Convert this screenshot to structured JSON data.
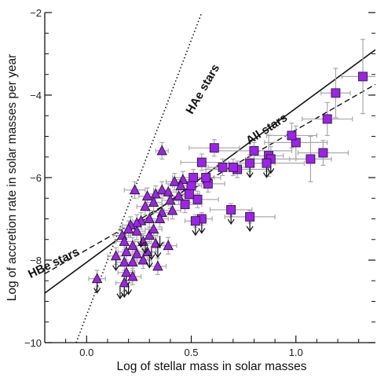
{
  "chart_data": {
    "type": "scatter",
    "title": "",
    "xlabel": "Log of stellar mass in solar masses",
    "ylabel": "Log of accretion rate in solar masses per year",
    "xlim": [
      -0.2,
      1.38
    ],
    "ylim": [
      -10,
      -2
    ],
    "x_ticks": [
      {
        "value": 0.0,
        "label": "0.0"
      },
      {
        "value": 0.5,
        "label": "0.5"
      },
      {
        "value": 1.0,
        "label": "1.0"
      }
    ],
    "x_minor_ticks": [
      -0.1,
      0.1,
      0.2,
      0.3,
      0.4,
      0.6,
      0.7,
      0.8,
      0.9,
      1.1,
      1.2,
      1.3
    ],
    "y_ticks": [
      {
        "value": -2,
        "label": "−2"
      },
      {
        "value": -4,
        "label": "−4"
      },
      {
        "value": -6,
        "label": "−6"
      },
      {
        "value": -8,
        "label": "−8"
      },
      {
        "value": -10,
        "label": "−10"
      }
    ],
    "y_minor_ticks": [
      -2.5,
      -3,
      -3.5,
      -4.5,
      -5,
      -5.5,
      -6.5,
      -7,
      -7.5,
      -8.5,
      -9,
      -9.5
    ],
    "grid": false,
    "annotations": [
      {
        "text": "HAe stars",
        "x": 0.57,
        "y": -3.9,
        "angle": -60
      },
      {
        "text": "All stars",
        "x": 0.87,
        "y": -4.9,
        "angle": -33
      },
      {
        "text": "HBe stars",
        "x": -0.15,
        "y": -8.15,
        "angle": -26
      }
    ],
    "fit_lines": [
      {
        "label": "All stars",
        "style": "solid",
        "x": [
          -0.2,
          1.38
        ],
        "y": [
          -8.8,
          -2.9
        ]
      },
      {
        "label": "HBe stars",
        "style": "dashed",
        "x": [
          -0.2,
          1.38
        ],
        "y": [
          -8.33,
          -3.74
        ]
      },
      {
        "label": "HAe stars",
        "style": "dotted",
        "x": [
          -0.05,
          0.55
        ],
        "y": [
          -10.0,
          -2.0
        ]
      }
    ],
    "series": [
      {
        "marker": "square",
        "color": "#a020f0",
        "points": [
          {
            "x": 1.32,
            "y": -3.55,
            "xerr": 0.1,
            "yerr": 0.9
          },
          {
            "x": 1.19,
            "y": -3.95,
            "xerr": 0.07,
            "yerr": 0.6
          },
          {
            "x": 1.15,
            "y": -4.58,
            "xerr": 0.12,
            "yerr": 0.4
          },
          {
            "x": 1.13,
            "y": -5.4,
            "xerr": 0.12,
            "yerr": 0.3
          },
          {
            "x": 1.07,
            "y": -5.55,
            "xerr": 0.1,
            "yerr": 0.55
          },
          {
            "x": 1.0,
            "y": -5.15,
            "xerr": 0.15,
            "yerr": 0.4
          },
          {
            "x": 0.98,
            "y": -4.98,
            "xerr": 0.12,
            "yerr": 0.3
          },
          {
            "x": 0.87,
            "y": -5.47,
            "xerr": 0.07,
            "yerr": 0.5
          },
          {
            "x": 0.88,
            "y": -5.55,
            "xerr": 0.12,
            "yerr": 0.3,
            "upper_limit": true
          },
          {
            "x": 0.86,
            "y": -5.65,
            "xerr": 0.18,
            "yerr": 0.2,
            "upper_limit": true
          },
          {
            "x": 0.8,
            "y": -5.35,
            "xerr": 0.18,
            "yerr": 0.2
          },
          {
            "x": 0.78,
            "y": -5.65,
            "xerr": 0.12,
            "yerr": 0.2,
            "upper_limit": true
          },
          {
            "x": 0.72,
            "y": -5.8,
            "xerr": 0.15,
            "yerr": 0.2
          },
          {
            "x": 0.7,
            "y": -5.75,
            "xerr": 0.08,
            "yerr": 0.2
          },
          {
            "x": 0.65,
            "y": -5.75,
            "xerr": 0.07,
            "yerr": 0.2
          },
          {
            "x": 0.61,
            "y": -5.28,
            "xerr": 0.12,
            "yerr": 0.2
          },
          {
            "x": 0.58,
            "y": -6.15,
            "xerr": 0.08,
            "yerr": 0.2
          },
          {
            "x": 0.57,
            "y": -6.0,
            "xerr": 0.07,
            "yerr": 0.2
          },
          {
            "x": 0.55,
            "y": -5.63,
            "xerr": 0.1,
            "yerr": 0.2
          },
          {
            "x": 0.53,
            "y": -6.53,
            "xerr": 0.1,
            "yerr": 0.2
          },
          {
            "x": 0.51,
            "y": -6.0,
            "xerr": 0.1,
            "yerr": 0.2
          },
          {
            "x": 0.5,
            "y": -6.2,
            "xerr": 0.05,
            "yerr": 0.2
          },
          {
            "x": 0.49,
            "y": -6.4,
            "xerr": 0.05,
            "yerr": 0.2
          },
          {
            "x": 0.47,
            "y": -6.65,
            "xerr": 0.08,
            "yerr": 0.2
          },
          {
            "x": 0.55,
            "y": -7.0,
            "xerr": 0.05,
            "yerr": 0.15,
            "upper_limit": true
          },
          {
            "x": 0.52,
            "y": -7.05,
            "xerr": 0.05,
            "yerr": 0.15,
            "upper_limit": true
          },
          {
            "x": 0.69,
            "y": -6.78,
            "xerr": 0.1,
            "yerr": 0.15,
            "upper_limit": true
          },
          {
            "x": 0.78,
            "y": -6.95,
            "xerr": 0.12,
            "yerr": 0.15,
            "upper_limit": true
          }
        ]
      },
      {
        "marker": "triangle",
        "color": "#a020f0",
        "points": [
          {
            "x": 0.36,
            "y": -5.35,
            "xerr": 0.03,
            "yerr": 0.2
          },
          {
            "x": 0.46,
            "y": -6.05,
            "xerr": 0.04,
            "yerr": 0.2
          },
          {
            "x": 0.42,
            "y": -6.1,
            "xerr": 0.04,
            "yerr": 0.2
          },
          {
            "x": 0.45,
            "y": -6.2,
            "xerr": 0.04,
            "yerr": 0.2
          },
          {
            "x": 0.36,
            "y": -6.3,
            "xerr": 0.04,
            "yerr": 0.2
          },
          {
            "x": 0.39,
            "y": -6.35,
            "xerr": 0.04,
            "yerr": 0.2
          },
          {
            "x": 0.44,
            "y": -6.45,
            "xerr": 0.04,
            "yerr": 0.2
          },
          {
            "x": 0.4,
            "y": -6.55,
            "xerr": 0.04,
            "yerr": 0.2
          },
          {
            "x": 0.33,
            "y": -6.4,
            "xerr": 0.04,
            "yerr": 0.2
          },
          {
            "x": 0.32,
            "y": -6.6,
            "xerr": 0.04,
            "yerr": 0.2
          },
          {
            "x": 0.28,
            "y": -6.7,
            "xerr": 0.04,
            "yerr": 0.2
          },
          {
            "x": 0.29,
            "y": -6.45,
            "xerr": 0.04,
            "yerr": 0.2
          },
          {
            "x": 0.23,
            "y": -6.3,
            "xerr": 0.05,
            "yerr": 0.2
          },
          {
            "x": 0.41,
            "y": -6.8,
            "xerr": 0.04,
            "yerr": 0.2
          },
          {
            "x": 0.36,
            "y": -6.85,
            "xerr": 0.04,
            "yerr": 0.2
          },
          {
            "x": 0.35,
            "y": -7.0,
            "xerr": 0.04,
            "yerr": 0.2
          },
          {
            "x": 0.3,
            "y": -7.0,
            "xerr": 0.04,
            "yerr": 0.2
          },
          {
            "x": 0.26,
            "y": -7.05,
            "xerr": 0.04,
            "yerr": 0.2
          },
          {
            "x": 0.24,
            "y": -7.1,
            "xerr": 0.04,
            "yerr": 0.2
          },
          {
            "x": 0.21,
            "y": -7.15,
            "xerr": 0.04,
            "yerr": 0.2
          },
          {
            "x": 0.2,
            "y": -7.25,
            "xerr": 0.04,
            "yerr": 0.2
          },
          {
            "x": 0.17,
            "y": -7.4,
            "xerr": 0.04,
            "yerr": 0.2
          },
          {
            "x": 0.24,
            "y": -7.3,
            "xerr": 0.04,
            "yerr": 0.2
          },
          {
            "x": 0.3,
            "y": -7.4,
            "xerr": 0.04,
            "yerr": 0.2
          },
          {
            "x": 0.32,
            "y": -7.25,
            "xerr": 0.04,
            "yerr": 0.2
          },
          {
            "x": 0.18,
            "y": -7.55,
            "xerr": 0.04,
            "yerr": 0.2
          },
          {
            "x": 0.22,
            "y": -7.65,
            "xerr": 0.04,
            "yerr": 0.2
          },
          {
            "x": 0.27,
            "y": -7.55,
            "xerr": 0.04,
            "yerr": 0.2
          },
          {
            "x": 0.33,
            "y": -7.6,
            "xerr": 0.04,
            "yerr": 0.2
          },
          {
            "x": 0.39,
            "y": -7.65,
            "xerr": 0.04,
            "yerr": 0.2
          },
          {
            "x": 0.19,
            "y": -7.8,
            "xerr": 0.04,
            "yerr": 0.2
          },
          {
            "x": 0.24,
            "y": -7.85,
            "xerr": 0.04,
            "yerr": 0.2
          },
          {
            "x": 0.29,
            "y": -7.8,
            "xerr": 0.04,
            "yerr": 0.2
          },
          {
            "x": 0.14,
            "y": -7.9,
            "xerr": 0.04,
            "yerr": 0.2,
            "upper_limit": true
          },
          {
            "x": 0.18,
            "y": -8.05,
            "xerr": 0.04,
            "yerr": 0.2
          },
          {
            "x": 0.22,
            "y": -8.05,
            "xerr": 0.04,
            "yerr": 0.2
          },
          {
            "x": 0.27,
            "y": -8.0,
            "xerr": 0.04,
            "yerr": 0.2
          },
          {
            "x": 0.34,
            "y": -8.15,
            "xerr": 0.04,
            "yerr": 0.2
          },
          {
            "x": 0.19,
            "y": -8.3,
            "xerr": 0.04,
            "yerr": 0.2,
            "upper_limit": true
          },
          {
            "x": 0.22,
            "y": -8.4,
            "xerr": 0.04,
            "yerr": 0.2
          },
          {
            "x": 0.18,
            "y": -8.55,
            "xerr": 0.04,
            "yerr": 0.2,
            "upper_limit": true
          },
          {
            "x": 0.05,
            "y": -8.45,
            "xerr": 0.04,
            "yerr": 0.2,
            "upper_limit": true
          }
        ]
      },
      {
        "marker": "arrow",
        "note": "upper-limit arrows without visible marker",
        "points": [
          {
            "x": 0.28,
            "y": -7.6
          },
          {
            "x": 0.31,
            "y": -7.75
          },
          {
            "x": 0.34,
            "y": -7.7
          },
          {
            "x": 0.3,
            "y": -7.95
          },
          {
            "x": 0.2,
            "y": -8.6
          },
          {
            "x": 0.16,
            "y": -8.7
          },
          {
            "x": 0.35,
            "y": -7.45
          },
          {
            "x": 0.26,
            "y": -7.45
          }
        ]
      }
    ]
  }
}
